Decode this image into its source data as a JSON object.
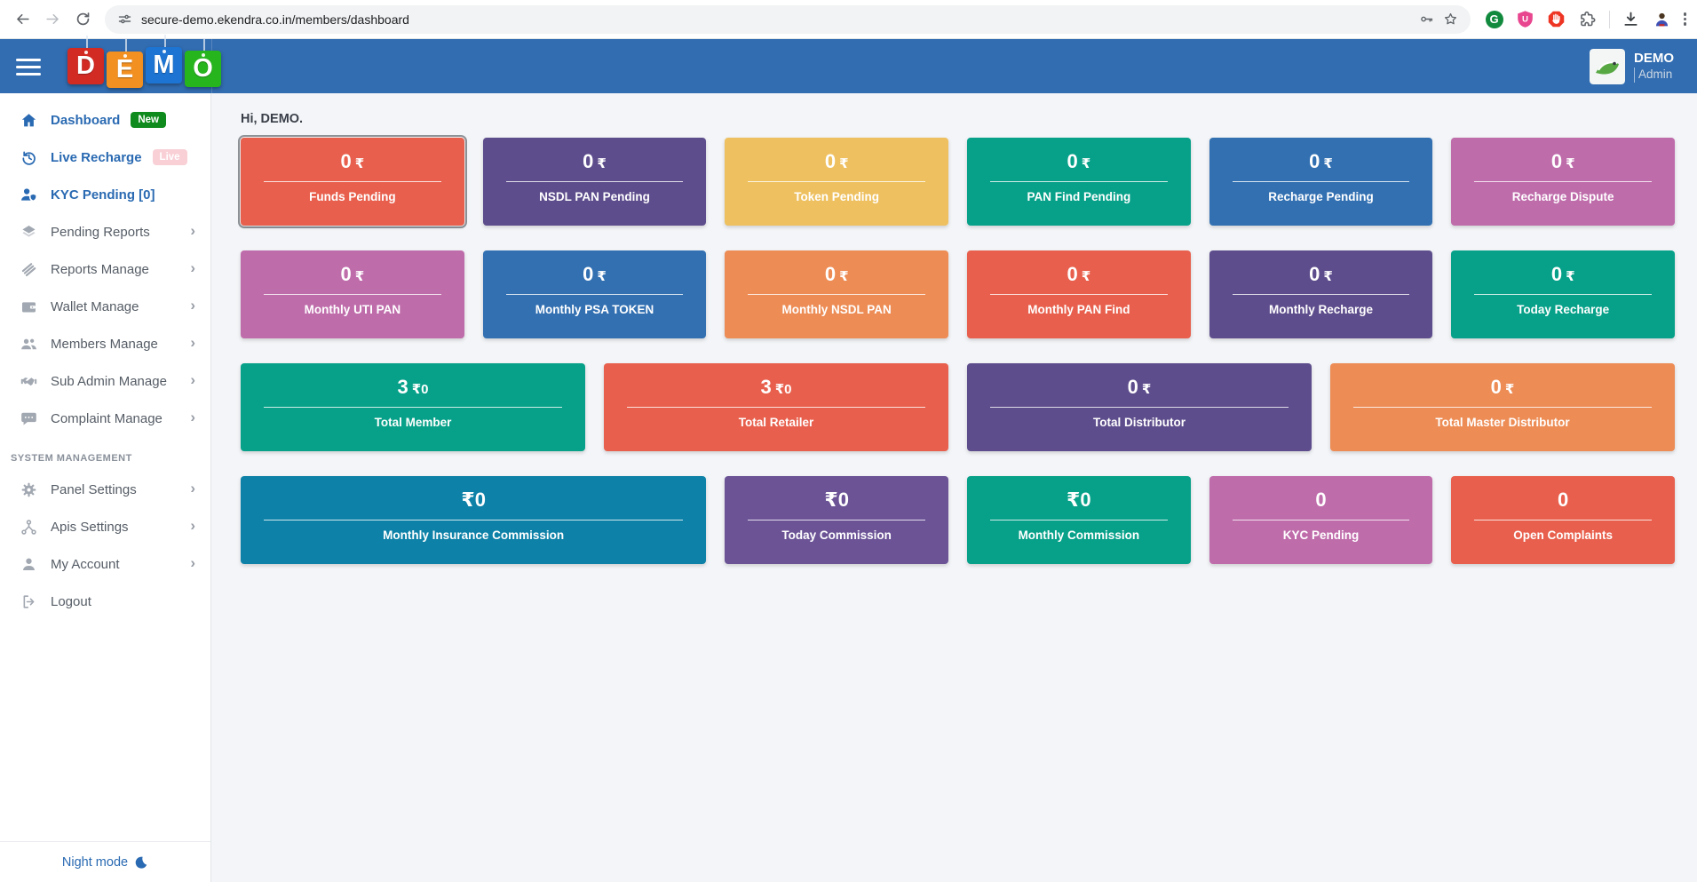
{
  "browser": {
    "url": "secure-demo.ekendra.co.in/members/dashboard",
    "extension_icons": [
      "grammarly-icon",
      "ublock-icon",
      "adblock-icon",
      "extensions-puzzle-icon",
      "downloads-icon",
      "profile-icon",
      "menu-dots-icon"
    ],
    "grammarly_letter": "G",
    "ublock_letter": "U"
  },
  "header": {
    "logo_letters": [
      {
        "char": "D",
        "color": "#d22b24"
      },
      {
        "char": "E",
        "color": "#f29022"
      },
      {
        "char": "M",
        "color": "#1d74d2"
      },
      {
        "char": "O",
        "color": "#27b51e"
      }
    ],
    "user_name": "DEMO",
    "user_role": "Admin",
    "bar_color": "#326db1"
  },
  "sidebar": {
    "items": [
      {
        "label": "Dashboard",
        "icon": "home-icon",
        "active": true,
        "badge": {
          "text": "New",
          "type": "new"
        }
      },
      {
        "label": "Live Recharge",
        "icon": "history-icon",
        "active": true,
        "badge": {
          "text": "Live",
          "type": "live"
        }
      },
      {
        "label": "KYC Pending [0]",
        "icon": "user-check-icon",
        "active": true
      },
      {
        "label": "Pending Reports",
        "icon": "layers-icon",
        "chevron": true
      },
      {
        "label": "Reports Manage",
        "icon": "reports-icon",
        "chevron": true
      },
      {
        "label": "Wallet Manage",
        "icon": "wallet-icon",
        "chevron": true
      },
      {
        "label": "Members Manage",
        "icon": "members-icon",
        "chevron": true
      },
      {
        "label": "Sub Admin Manage",
        "icon": "handshake-icon",
        "chevron": true
      },
      {
        "label": "Complaint Manage",
        "icon": "chat-icon",
        "chevron": true
      },
      {
        "section": "SYSTEM MANAGEMENT"
      },
      {
        "label": "Panel Settings",
        "icon": "gear-icon",
        "chevron": true
      },
      {
        "label": "Apis Settings",
        "icon": "api-icon",
        "chevron": true
      },
      {
        "label": "My Account",
        "icon": "user-icon",
        "chevron": true
      },
      {
        "label": "Logout",
        "icon": "logout-icon"
      }
    ],
    "night_mode_label": "Night mode"
  },
  "main": {
    "greeting": "Hi, DEMO.",
    "cards": [
      {
        "label": "Funds Pending",
        "value": "0",
        "suffix": "₹",
        "color": "#e8604d",
        "span": 2,
        "focused": true
      },
      {
        "label": "NSDL PAN Pending",
        "value": "0",
        "suffix": "₹",
        "color": "#5e4d8c",
        "span": 2
      },
      {
        "label": "Token Pending",
        "value": "0",
        "suffix": "₹",
        "color": "#eec05f",
        "span": 2
      },
      {
        "label": "PAN Find Pending",
        "value": "0",
        "suffix": "₹",
        "color": "#07a189",
        "span": 2
      },
      {
        "label": "Recharge Pending",
        "value": "0",
        "suffix": "₹",
        "color": "#3270b2",
        "span": 2
      },
      {
        "label": "Recharge Dispute",
        "value": "0",
        "suffix": "₹",
        "color": "#bf6cab",
        "span": 2
      },
      {
        "label": "Monthly UTI PAN",
        "value": "0",
        "suffix": "₹",
        "color": "#bf6cab",
        "span": 2
      },
      {
        "label": "Monthly PSA TOKEN",
        "value": "0",
        "suffix": "₹",
        "color": "#3270b2",
        "span": 2
      },
      {
        "label": "Monthly NSDL PAN",
        "value": "0",
        "suffix": "₹",
        "color": "#ed8c55",
        "span": 2
      },
      {
        "label": "Monthly PAN Find",
        "value": "0",
        "suffix": "₹",
        "color": "#e8604d",
        "span": 2
      },
      {
        "label": "Monthly Recharge",
        "value": "0",
        "suffix": "₹",
        "color": "#5e4d8c",
        "span": 2
      },
      {
        "label": "Today Recharge",
        "value": "0",
        "suffix": "₹",
        "color": "#07a189",
        "span": 2
      },
      {
        "label": "Total Member",
        "value": "3",
        "suffix": "₹0",
        "color": "#07a189",
        "span": 3
      },
      {
        "label": "Total Retailer",
        "value": "3",
        "suffix": "₹0",
        "color": "#e8604d",
        "span": 3
      },
      {
        "label": "Total Distributor",
        "value": "0",
        "suffix": "₹",
        "color": "#5e4d8c",
        "span": 3
      },
      {
        "label": "Total Master Distributor",
        "value": "0",
        "suffix": "₹",
        "color": "#ed8c55",
        "span": 3
      },
      {
        "label": "Monthly Insurance Commission",
        "value": "₹0",
        "suffix": "",
        "color": "#0d81a7",
        "span": 4
      },
      {
        "label": "Today Commission",
        "value": "₹0",
        "suffix": "",
        "color": "#6b5396",
        "span": 2
      },
      {
        "label": "Monthly Commission",
        "value": "₹0",
        "suffix": "",
        "color": "#07a189",
        "span": 2
      },
      {
        "label": "KYC Pending",
        "value": "0",
        "suffix": "",
        "color": "#bf6cab",
        "span": 2
      },
      {
        "label": "Open Complaints",
        "value": "0",
        "suffix": "",
        "color": "#e8604d",
        "span": 2
      }
    ]
  }
}
